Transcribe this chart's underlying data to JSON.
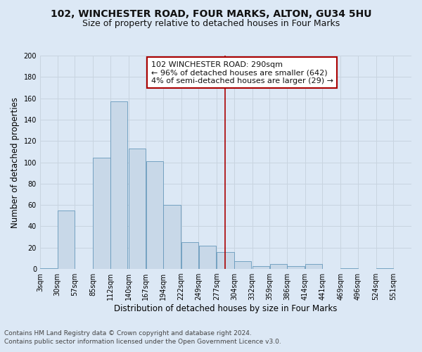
{
  "title": "102, WINCHESTER ROAD, FOUR MARKS, ALTON, GU34 5HU",
  "subtitle": "Size of property relative to detached houses in Four Marks",
  "xlabel": "Distribution of detached houses by size in Four Marks",
  "ylabel": "Number of detached properties",
  "footnote1": "Contains HM Land Registry data © Crown copyright and database right 2024.",
  "footnote2": "Contains public sector information licensed under the Open Government Licence v3.0.",
  "annotation_line1": "102 WINCHESTER ROAD: 290sqm",
  "annotation_line2": "← 96% of detached houses are smaller (642)",
  "annotation_line3": "4% of semi-detached houses are larger (29) →",
  "property_size": 290,
  "bar_color": "#c8d8e8",
  "bar_edge_color": "#6699bb",
  "vline_color": "#aa0000",
  "vline_x": 290,
  "bins": [
    3,
    30,
    57,
    85,
    112,
    140,
    167,
    194,
    222,
    249,
    277,
    304,
    332,
    359,
    386,
    414,
    441,
    469,
    496,
    524,
    551,
    579
  ],
  "bar_heights": [
    1,
    55,
    0,
    104,
    157,
    113,
    101,
    60,
    25,
    22,
    16,
    7,
    3,
    5,
    3,
    5,
    0,
    1,
    0,
    1,
    0
  ],
  "ylim": [
    0,
    200
  ],
  "yticks": [
    0,
    20,
    40,
    60,
    80,
    100,
    120,
    140,
    160,
    180,
    200
  ],
  "xtick_labels": [
    "3sqm",
    "30sqm",
    "57sqm",
    "85sqm",
    "112sqm",
    "140sqm",
    "167sqm",
    "194sqm",
    "222sqm",
    "249sqm",
    "277sqm",
    "304sqm",
    "332sqm",
    "359sqm",
    "386sqm",
    "414sqm",
    "441sqm",
    "469sqm",
    "496sqm",
    "524sqm",
    "551sqm"
  ],
  "background_color": "#dce8f5",
  "plot_background": "#dce8f5",
  "grid_color": "#c8d4e0",
  "title_fontsize": 10,
  "subtitle_fontsize": 9,
  "axis_label_fontsize": 8.5,
  "tick_fontsize": 7,
  "annotation_fontsize": 8,
  "footnote_fontsize": 6.5
}
